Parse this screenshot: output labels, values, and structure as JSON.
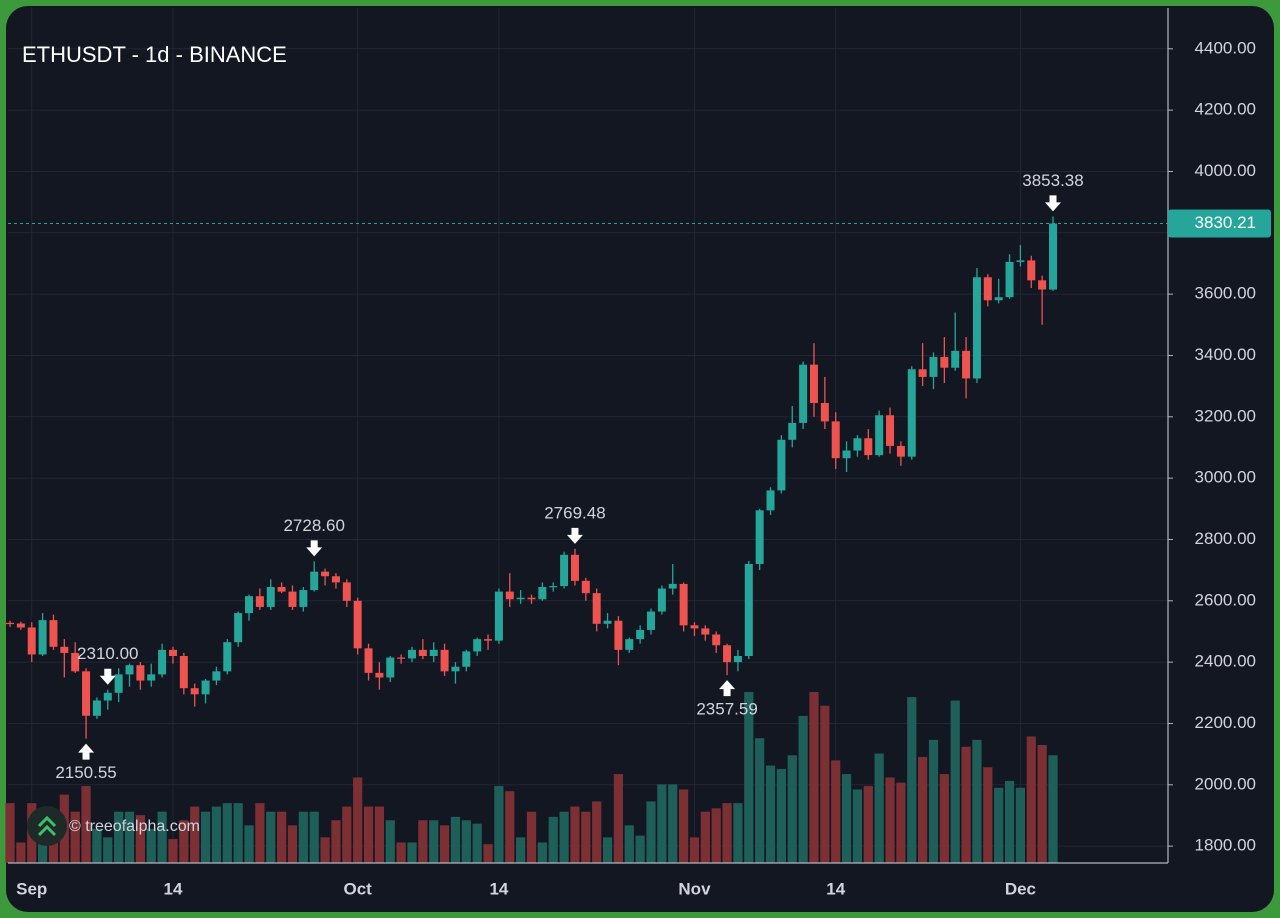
{
  "chart_data": {
    "type": "candlestick",
    "title": "ETHUSDT - 1d - BINANCE",
    "watermark": "© treeofalpha.com",
    "categories": [
      null,
      null,
      "Sep",
      null,
      null,
      null,
      null,
      null,
      null,
      null,
      null,
      null,
      null,
      null,
      null,
      "14",
      null,
      null,
      null,
      null,
      null,
      null,
      null,
      null,
      null,
      null,
      null,
      null,
      null,
      null,
      null,
      null,
      "Oct",
      null,
      null,
      null,
      null,
      null,
      null,
      null,
      null,
      null,
      null,
      null,
      null,
      "14",
      null,
      null,
      null,
      null,
      null,
      null,
      null,
      null,
      null,
      null,
      null,
      null,
      null,
      null,
      null,
      null,
      null,
      "Nov",
      null,
      null,
      null,
      null,
      null,
      null,
      null,
      null,
      null,
      null,
      null,
      null,
      "14",
      null,
      null,
      null,
      null,
      null,
      null,
      null,
      null,
      null,
      null,
      null,
      null,
      null,
      null,
      null,
      null,
      "Dec",
      null,
      null,
      null
    ],
    "open": [
      2528,
      2526,
      2513,
      2425,
      2537,
      2450,
      2430,
      2370,
      2225,
      2275,
      2300,
      2360,
      2390,
      2340,
      2360,
      2440,
      2420,
      2315,
      2295,
      2340,
      2370,
      2465,
      2560,
      2615,
      2580,
      2645,
      2630,
      2580,
      2635,
      2695,
      2680,
      2660,
      2600,
      2445,
      2365,
      2350,
      2415,
      2412,
      2440,
      2420,
      2440,
      2370,
      2385,
      2435,
      2475,
      2470,
      2630,
      2605,
      2610,
      2605,
      2645,
      2648,
      2750,
      2665,
      2625,
      2525,
      2535,
      2440,
      2475,
      2505,
      2565,
      2640,
      2655,
      2520,
      2510,
      2490,
      2455,
      2400,
      2420,
      2720,
      2895,
      2960,
      3125,
      3180,
      3370,
      3245,
      3185,
      3065,
      3090,
      3130,
      3075,
      3205,
      3105,
      3070,
      3355,
      3330,
      3395,
      3360,
      3415,
      3325,
      3655,
      3580,
      3590,
      3705,
      3710,
      3645,
      3615
    ],
    "high": [
      2535,
      2532,
      2530,
      2560,
      2555,
      2475,
      2465,
      2380,
      2285,
      2310,
      2380,
      2395,
      2400,
      2395,
      2460,
      2450,
      2430,
      2330,
      2345,
      2385,
      2475,
      2565,
      2620,
      2640,
      2670,
      2660,
      2650,
      2645,
      2728.6,
      2705,
      2690,
      2670,
      2610,
      2460,
      2400,
      2420,
      2425,
      2450,
      2475,
      2465,
      2460,
      2400,
      2440,
      2480,
      2490,
      2640,
      2690,
      2635,
      2620,
      2660,
      2660,
      2760,
      2769.48,
      2675,
      2640,
      2560,
      2550,
      2480,
      2520,
      2575,
      2650,
      2720,
      2660,
      2530,
      2520,
      2500,
      2460,
      2440,
      2730,
      2900,
      2970,
      3140,
      3235,
      3380,
      3440,
      3330,
      3215,
      3120,
      3140,
      3160,
      3220,
      3230,
      3120,
      3365,
      3440,
      3410,
      3460,
      3540,
      3460,
      3685,
      3665,
      3650,
      3730,
      3760,
      3725,
      3660,
      3853.38
    ],
    "low": [
      2515,
      2505,
      2400,
      2420,
      2440,
      2350,
      2365,
      2150.55,
      2215,
      2245,
      2270,
      2320,
      2310,
      2320,
      2350,
      2395,
      2295,
      2255,
      2265,
      2325,
      2360,
      2450,
      2535,
      2570,
      2570,
      2625,
      2570,
      2565,
      2630,
      2650,
      2640,
      2580,
      2425,
      2340,
      2310.0,
      2335,
      2395,
      2400,
      2410,
      2400,
      2355,
      2330,
      2370,
      2420,
      2440,
      2460,
      2580,
      2590,
      2590,
      2600,
      2630,
      2640,
      2650,
      2600,
      2500,
      2510,
      2390,
      2430,
      2460,
      2490,
      2555,
      2620,
      2500,
      2485,
      2470,
      2430,
      2357.59,
      2370,
      2410,
      2700,
      2880,
      2950,
      3100,
      3160,
      3200,
      3160,
      3030,
      3020,
      3070,
      3060,
      3070,
      3080,
      3040,
      3060,
      3300,
      3290,
      3310,
      3350,
      3260,
      3310,
      3560,
      3570,
      3585,
      3690,
      3620,
      3500,
      3610
    ],
    "close": [
      2526,
      2513,
      2425,
      2537,
      2450,
      2430,
      2370,
      2225,
      2275,
      2300,
      2360,
      2390,
      2340,
      2360,
      2440,
      2420,
      2315,
      2295,
      2340,
      2370,
      2465,
      2560,
      2615,
      2580,
      2645,
      2630,
      2580,
      2635,
      2695,
      2680,
      2660,
      2600,
      2445,
      2365,
      2350,
      2415,
      2412,
      2440,
      2420,
      2440,
      2370,
      2385,
      2435,
      2475,
      2470,
      2630,
      2605,
      2610,
      2605,
      2645,
      2648,
      2750,
      2665,
      2625,
      2525,
      2535,
      2440,
      2475,
      2505,
      2565,
      2640,
      2655,
      2520,
      2510,
      2490,
      2455,
      2400,
      2420,
      2720,
      2895,
      2960,
      3125,
      3180,
      3370,
      3245,
      3185,
      3065,
      3090,
      3130,
      3075,
      3205,
      3105,
      3070,
      3355,
      3330,
      3395,
      3360,
      3415,
      3325,
      3655,
      3580,
      3590,
      3705,
      3710,
      3645,
      3615,
      3830.21
    ],
    "volume": [
      35,
      12,
      35,
      30,
      25,
      40,
      30,
      45,
      20,
      15,
      30,
      30,
      28,
      20,
      30,
      14,
      25,
      33,
      30,
      33,
      35,
      35,
      22,
      35,
      30,
      30,
      22,
      30,
      30,
      15,
      25,
      33,
      50,
      33,
      33,
      25,
      12,
      12,
      25,
      25,
      22,
      27,
      25,
      23,
      11,
      45,
      42,
      15,
      30,
      12,
      27,
      30,
      33,
      30,
      36,
      15,
      52,
      22,
      16,
      36,
      46,
      46,
      43,
      15,
      30,
      32,
      35,
      35,
      100,
      73,
      57,
      55,
      63,
      86,
      100,
      92,
      60,
      52,
      43,
      45,
      64,
      50,
      47,
      97,
      62,
      72,
      52,
      95,
      68,
      72,
      56,
      44,
      48,
      44,
      74,
      69,
      63
    ],
    "volume_ylim": [
      0,
      100
    ],
    "up_color": "#26a69a",
    "down_color": "#ef5350",
    "up_volume_color": "#1f5f5a",
    "down_volume_color": "#7c3034",
    "ylim": [
      1745,
      4533
    ],
    "yticks": [
      {
        "value": 1800,
        "label": "1800.00"
      },
      {
        "value": 2000,
        "label": "2000.00"
      },
      {
        "value": 2200,
        "label": "2200.00"
      },
      {
        "value": 2400,
        "label": "2400.00"
      },
      {
        "value": 2600,
        "label": "2600.00"
      },
      {
        "value": 2800,
        "label": "2800.00"
      },
      {
        "value": 3000,
        "label": "3000.00"
      },
      {
        "value": 3200,
        "label": "3200.00"
      },
      {
        "value": 3400,
        "label": "3400.00"
      },
      {
        "value": 3600,
        "label": "3600.00"
      },
      {
        "value": 3800,
        "label": "3800.00"
      },
      {
        "value": 4000,
        "label": "4000.00"
      },
      {
        "value": 4200,
        "label": "4200.00"
      },
      {
        "value": 4400,
        "label": "4400.00"
      }
    ],
    "grid": true,
    "last_price": 3830.21,
    "annotations": [
      2150.55,
      {
        "value": 2728.6,
        "label": "2728.60"
      },
      {
        "value": 2310.0,
        "label": "2310.00"
      },
      2769.48,
      2357.59,
      3853.38
    ]
  }
}
